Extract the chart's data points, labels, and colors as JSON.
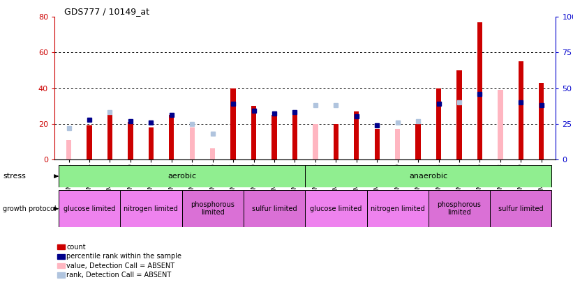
{
  "title": "GDS777 / 10149_at",
  "samples": [
    "GSM29912",
    "GSM29914",
    "GSM29917",
    "GSM29920",
    "GSM29921",
    "GSM29922",
    "GSM29924",
    "GSM29926",
    "GSM29927",
    "GSM29929",
    "GSM29930",
    "GSM29932",
    "GSM29934",
    "GSM29936",
    "GSM29937",
    "GSM29939",
    "GSM29940",
    "GSM29942",
    "GSM29943",
    "GSM29945",
    "GSM29946",
    "GSM29948",
    "GSM29949",
    "GSM29951"
  ],
  "count_red": [
    0,
    19,
    26,
    21,
    18,
    25,
    0,
    0,
    40,
    30,
    25,
    26,
    0,
    20,
    27,
    17,
    0,
    20,
    40,
    50,
    77,
    0,
    55,
    43
  ],
  "count_pink": [
    11,
    0,
    0,
    0,
    0,
    0,
    18,
    6,
    0,
    0,
    0,
    0,
    20,
    0,
    0,
    0,
    17,
    0,
    0,
    0,
    0,
    39,
    0,
    0
  ],
  "rank_blue": [
    0,
    28,
    0,
    27,
    26,
    31,
    0,
    0,
    39,
    34,
    32,
    33,
    0,
    0,
    30,
    24,
    0,
    0,
    39,
    0,
    46,
    0,
    40,
    38
  ],
  "rank_lightblue": [
    22,
    0,
    33,
    0,
    0,
    0,
    25,
    18,
    0,
    0,
    0,
    0,
    38,
    38,
    0,
    0,
    26,
    27,
    0,
    40,
    0,
    0,
    0,
    0
  ],
  "ylim_left": [
    0,
    80
  ],
  "yticks_left": [
    0,
    20,
    40,
    60,
    80
  ],
  "ytick_labels_right": [
    "0",
    "25",
    "50",
    "75",
    "100%"
  ],
  "growth_groups": [
    {
      "label": "glucose limited",
      "start": 0,
      "end": 3,
      "color": "#ee82ee"
    },
    {
      "label": "nitrogen limited",
      "start": 3,
      "end": 6,
      "color": "#ee82ee"
    },
    {
      "label": "phosphorous\nlimited",
      "start": 6,
      "end": 9,
      "color": "#da70d6"
    },
    {
      "label": "sulfur limited",
      "start": 9,
      "end": 12,
      "color": "#da70d6"
    },
    {
      "label": "glucose limited",
      "start": 12,
      "end": 15,
      "color": "#ee82ee"
    },
    {
      "label": "nitrogen limited",
      "start": 15,
      "end": 18,
      "color": "#ee82ee"
    },
    {
      "label": "phosphorous\nlimited",
      "start": 18,
      "end": 21,
      "color": "#da70d6"
    },
    {
      "label": "sulfur limited",
      "start": 21,
      "end": 24,
      "color": "#da70d6"
    }
  ],
  "legend_items": [
    {
      "color": "#cc0000",
      "label": "count"
    },
    {
      "color": "#00008b",
      "label": "percentile rank within the sample"
    },
    {
      "color": "#ffb6c1",
      "label": "value, Detection Call = ABSENT"
    },
    {
      "color": "#b0c4de",
      "label": "rank, Detection Call = ABSENT"
    }
  ],
  "left_axis_color": "#cc0000",
  "right_axis_color": "#0000cc"
}
